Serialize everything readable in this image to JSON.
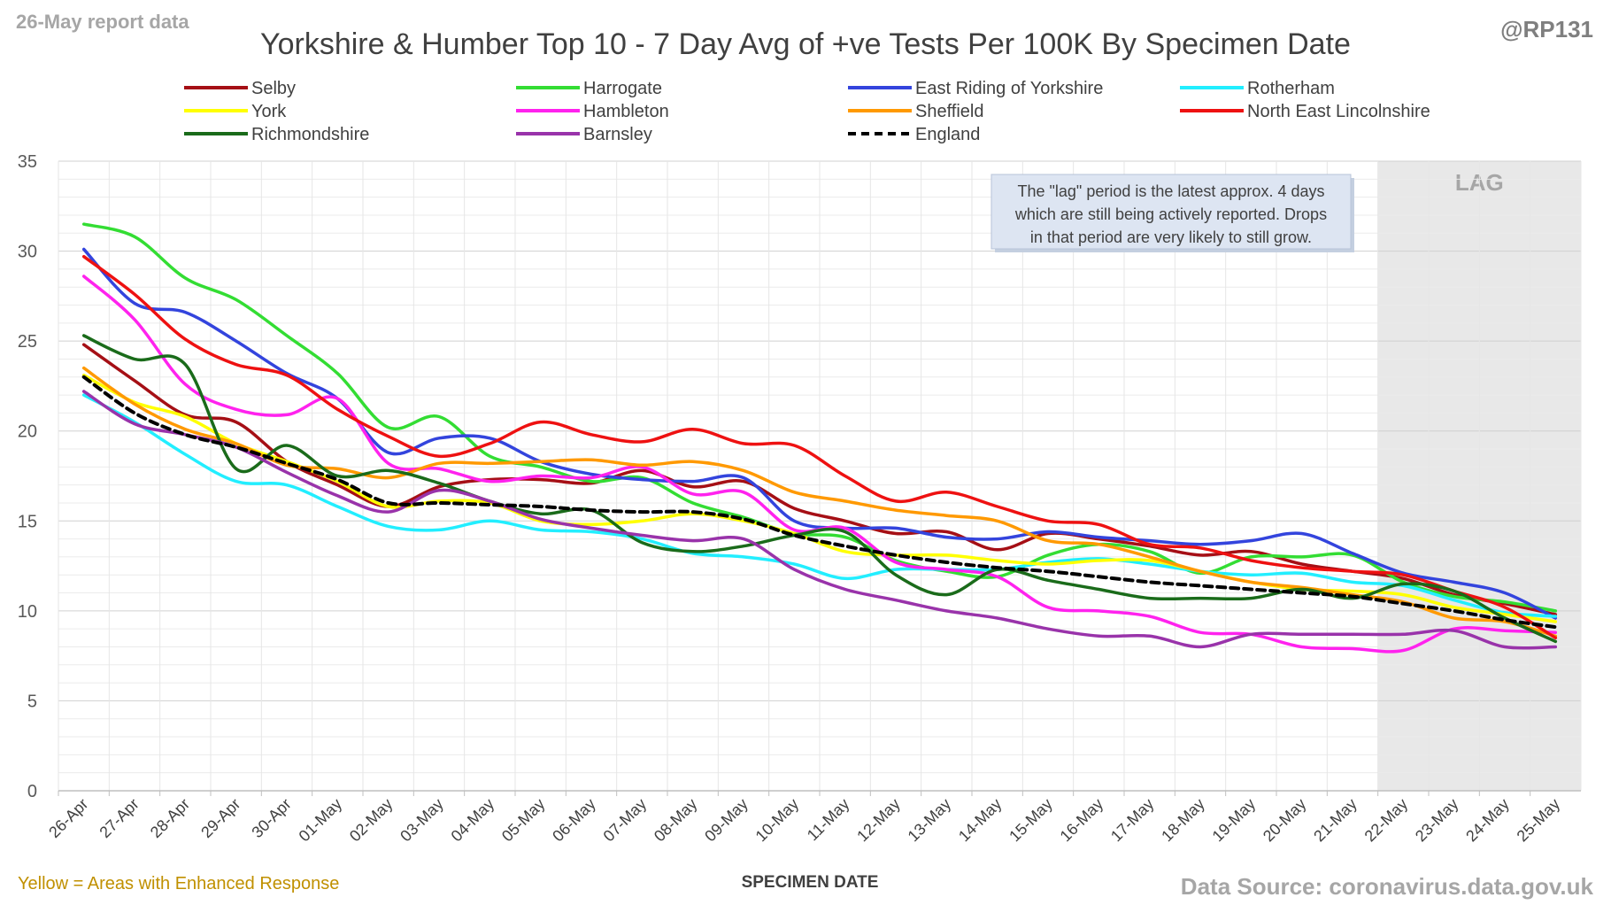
{
  "header": {
    "report_date": "26-May report data",
    "handle": "@RP131"
  },
  "footer": {
    "note": "Yellow = Areas with Enhanced Response",
    "source": "Data Source: coronavirus.data.gov.uk"
  },
  "annotation": {
    "lines": [
      "The \"lag\" period is the latest approx. 4 days",
      "which are still being actively reported. Drops",
      "in that period are very likely to still grow."
    ]
  },
  "colors": {
    "background": "#ffffff",
    "gridline": "#d9d9d9",
    "lag_band": "#e8e8e8",
    "lag_label": "#a6a6a6",
    "header_gray": "#a6a6a6",
    "footer_note": "#c09000",
    "annotation_fill": "#dde5f2"
  },
  "chart_data": {
    "type": "line",
    "title": "Yorkshire & Humber Top 10 - 7 Day Avg of +ve Tests Per 100K By Specimen Date",
    "xlabel": "SPECIMEN DATE",
    "ylabel": "",
    "ylim": [
      0,
      35
    ],
    "yticks": [
      0,
      5,
      10,
      15,
      20,
      25,
      30,
      35
    ],
    "grid": true,
    "legend_position": "top",
    "lag_region": {
      "from": "22-May",
      "to": "25-May",
      "label": "LAG"
    },
    "categories": [
      "26-Apr",
      "27-Apr",
      "28-Apr",
      "29-Apr",
      "30-Apr",
      "01-May",
      "02-May",
      "03-May",
      "04-May",
      "05-May",
      "06-May",
      "07-May",
      "08-May",
      "09-May",
      "10-May",
      "11-May",
      "12-May",
      "13-May",
      "14-May",
      "15-May",
      "16-May",
      "17-May",
      "18-May",
      "19-May",
      "20-May",
      "21-May",
      "22-May",
      "23-May",
      "24-May",
      "25-May"
    ],
    "series": [
      {
        "name": "Selby",
        "color": "#a50f15",
        "dashed": false,
        "values": [
          24.8,
          22.8,
          20.9,
          20.5,
          18.3,
          17.0,
          15.8,
          16.9,
          17.3,
          17.3,
          17.1,
          17.8,
          16.9,
          17.2,
          15.7,
          15.0,
          14.3,
          14.4,
          13.4,
          14.3,
          14.0,
          13.6,
          13.1,
          13.3,
          12.6,
          12.2,
          11.8,
          10.9,
          10.4,
          9.8
        ]
      },
      {
        "name": "Harrogate",
        "color": "#33dd33",
        "dashed": false,
        "values": [
          31.5,
          30.8,
          28.5,
          27.3,
          25.3,
          23.2,
          20.2,
          20.8,
          18.6,
          18.0,
          17.2,
          17.4,
          16.0,
          15.2,
          14.3,
          14.1,
          12.8,
          12.2,
          11.9,
          13.1,
          13.7,
          13.3,
          12.1,
          13.0,
          13.0,
          13.1,
          11.6,
          10.8,
          10.5,
          10.0
        ]
      },
      {
        "name": "East Riding of Yorkshire",
        "color": "#3344dd",
        "dashed": false,
        "values": [
          30.1,
          27.1,
          26.6,
          25.0,
          23.2,
          21.8,
          18.8,
          19.6,
          19.6,
          18.3,
          17.6,
          17.3,
          17.2,
          17.4,
          15.0,
          14.6,
          14.6,
          14.1,
          14.0,
          14.4,
          14.1,
          13.9,
          13.7,
          13.9,
          14.3,
          13.2,
          12.1,
          11.6,
          11.0,
          9.6
        ]
      },
      {
        "name": "Rotherham",
        "color": "#22eeff",
        "dashed": false,
        "values": [
          22.0,
          20.5,
          18.7,
          17.2,
          17.0,
          15.8,
          14.7,
          14.5,
          15.0,
          14.5,
          14.4,
          14.0,
          13.2,
          13.0,
          12.6,
          11.8,
          12.3,
          12.3,
          12.3,
          12.7,
          12.9,
          12.6,
          12.2,
          12.0,
          12.1,
          11.6,
          11.4,
          10.6,
          9.9,
          9.7
        ]
      },
      {
        "name": "York",
        "color": "#ffff00",
        "dashed": false,
        "values": [
          23.1,
          21.6,
          20.8,
          19.3,
          18.3,
          17.2,
          15.8,
          16.1,
          16.0,
          15.0,
          14.8,
          15.0,
          15.4,
          15.0,
          14.3,
          13.3,
          13.1,
          13.1,
          12.8,
          12.6,
          12.8,
          12.8,
          12.2,
          11.6,
          11.2,
          11.1,
          10.9,
          10.2,
          9.8,
          9.4
        ]
      },
      {
        "name": "Hambleton",
        "color": "#ff22ee",
        "dashed": false,
        "values": [
          28.6,
          26.2,
          22.6,
          21.2,
          20.9,
          21.8,
          18.2,
          17.9,
          17.2,
          17.5,
          17.4,
          18.0,
          16.5,
          16.6,
          14.5,
          14.6,
          12.7,
          12.3,
          11.9,
          10.2,
          10.0,
          9.7,
          8.8,
          8.7,
          8.0,
          7.9,
          7.8,
          9.0,
          8.9,
          8.8
        ]
      },
      {
        "name": "Sheffield",
        "color": "#ff9900",
        "dashed": false,
        "values": [
          23.5,
          21.5,
          20.1,
          19.3,
          18.1,
          17.9,
          17.4,
          18.2,
          18.2,
          18.3,
          18.4,
          18.1,
          18.3,
          17.8,
          16.6,
          16.1,
          15.6,
          15.3,
          15.0,
          13.9,
          13.7,
          13.0,
          12.2,
          11.6,
          11.3,
          10.9,
          10.5,
          9.6,
          9.4,
          8.6
        ]
      },
      {
        "name": "North East Lincolnshire",
        "color": "#ee1111",
        "dashed": false,
        "values": [
          29.7,
          27.6,
          25.1,
          23.7,
          23.1,
          21.2,
          19.7,
          18.6,
          19.3,
          20.5,
          19.8,
          19.4,
          20.1,
          19.3,
          19.2,
          17.5,
          16.1,
          16.6,
          15.8,
          15.0,
          14.8,
          13.7,
          13.5,
          12.8,
          12.4,
          12.2,
          12.0,
          11.1,
          10.2,
          8.5
        ]
      },
      {
        "name": "Richmondshire",
        "color": "#1a6b1a",
        "dashed": false,
        "values": [
          25.3,
          24.0,
          23.7,
          17.9,
          19.2,
          17.5,
          17.8,
          17.1,
          16.1,
          15.4,
          15.6,
          13.8,
          13.3,
          13.6,
          14.2,
          14.4,
          12.0,
          10.9,
          12.3,
          11.7,
          11.2,
          10.7,
          10.7,
          10.7,
          11.2,
          10.7,
          11.5,
          11.1,
          9.6,
          8.3
        ]
      },
      {
        "name": "Barnsley",
        "color": "#9933aa",
        "dashed": false,
        "values": [
          22.2,
          20.4,
          19.8,
          19.1,
          17.7,
          16.4,
          15.5,
          16.7,
          16.1,
          15.1,
          14.6,
          14.2,
          13.9,
          14.0,
          12.3,
          11.2,
          10.6,
          10.0,
          9.6,
          9.0,
          8.6,
          8.6,
          8.0,
          8.7,
          8.7,
          8.7,
          8.7,
          8.9,
          8.0,
          8.0
        ]
      },
      {
        "name": "England",
        "color": "#000000",
        "dashed": true,
        "values": [
          23.0,
          21.0,
          19.8,
          19.1,
          18.2,
          17.3,
          16.0,
          16.0,
          15.9,
          15.8,
          15.6,
          15.5,
          15.5,
          15.1,
          14.2,
          13.6,
          13.1,
          12.7,
          12.4,
          12.2,
          11.9,
          11.6,
          11.4,
          11.2,
          11.0,
          10.8,
          10.4,
          10.0,
          9.5,
          9.1
        ]
      }
    ]
  }
}
